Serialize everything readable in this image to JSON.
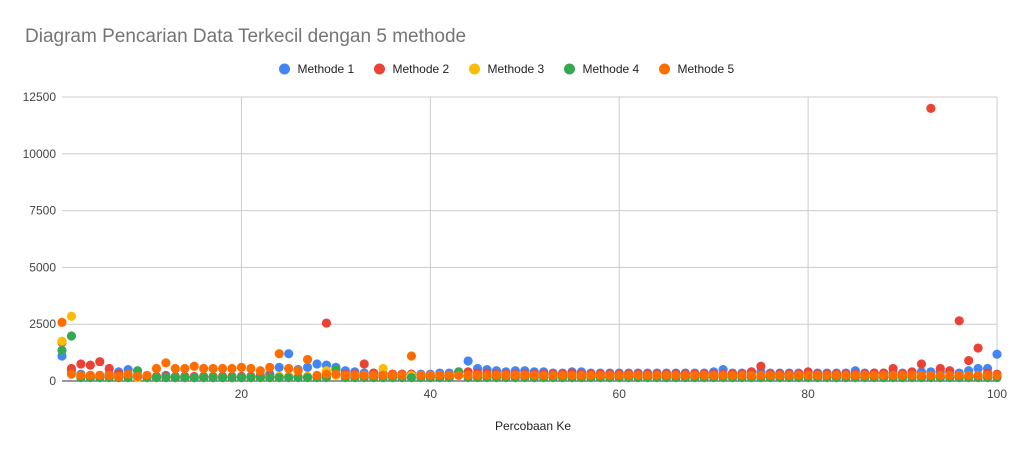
{
  "chart_data": {
    "type": "scatter",
    "title": "Diagram Pencarian Data Terkecil dengan 5 methode",
    "xlabel": "Percobaan Ke",
    "ylabel": "",
    "xlim": [
      1,
      100
    ],
    "ylim": [
      0,
      12500
    ],
    "xticks": [
      20,
      40,
      60,
      80,
      100
    ],
    "yticks": [
      0,
      2500,
      5000,
      7500,
      10000,
      12500
    ],
    "grid": true,
    "legend_position": "top",
    "series": [
      {
        "name": "Methode 1",
        "color": "#4285f4",
        "x": [
          1,
          2,
          3,
          4,
          5,
          6,
          7,
          8,
          9,
          10,
          11,
          12,
          13,
          14,
          15,
          16,
          17,
          18,
          19,
          20,
          21,
          22,
          23,
          24,
          25,
          26,
          27,
          28,
          29,
          30,
          31,
          32,
          33,
          34,
          35,
          36,
          37,
          38,
          39,
          40,
          41,
          42,
          43,
          44,
          45,
          46,
          47,
          48,
          49,
          50,
          51,
          52,
          53,
          54,
          55,
          56,
          57,
          58,
          59,
          60,
          61,
          62,
          63,
          64,
          65,
          66,
          67,
          68,
          69,
          70,
          71,
          72,
          73,
          74,
          75,
          76,
          77,
          78,
          79,
          80,
          81,
          82,
          83,
          84,
          85,
          86,
          87,
          88,
          89,
          90,
          91,
          92,
          93,
          94,
          95,
          96,
          97,
          98,
          99,
          100
        ],
        "y": [
          1100,
          450,
          300,
          250,
          250,
          300,
          400,
          500,
          250,
          200,
          200,
          250,
          150,
          200,
          150,
          200,
          150,
          200,
          150,
          200,
          200,
          250,
          300,
          600,
          1200,
          500,
          600,
          750,
          700,
          600,
          450,
          400,
          350,
          350,
          300,
          300,
          300,
          300,
          300,
          300,
          350,
          350,
          400,
          880,
          550,
          500,
          450,
          400,
          450,
          450,
          400,
          400,
          350,
          350,
          400,
          400,
          350,
          350,
          350,
          350,
          350,
          350,
          350,
          350,
          350,
          350,
          350,
          350,
          350,
          400,
          500,
          350,
          350,
          400,
          400,
          350,
          350,
          350,
          350,
          350,
          350,
          350,
          350,
          350,
          450,
          350,
          350,
          350,
          350,
          350,
          350,
          400,
          400,
          400,
          350,
          350,
          450,
          550,
          550,
          1180
        ]
      },
      {
        "name": "Methode 2",
        "color": "#ea4335",
        "x": [
          1,
          2,
          3,
          4,
          5,
          6,
          7,
          8,
          9,
          10,
          11,
          12,
          13,
          14,
          15,
          16,
          17,
          18,
          19,
          20,
          21,
          22,
          23,
          24,
          25,
          26,
          27,
          28,
          29,
          30,
          31,
          32,
          33,
          34,
          35,
          36,
          37,
          38,
          39,
          40,
          41,
          42,
          43,
          44,
          45,
          46,
          47,
          48,
          49,
          50,
          51,
          52,
          53,
          54,
          55,
          56,
          57,
          58,
          59,
          60,
          61,
          62,
          63,
          64,
          65,
          66,
          67,
          68,
          69,
          70,
          71,
          72,
          73,
          74,
          75,
          76,
          77,
          78,
          79,
          80,
          81,
          82,
          83,
          84,
          85,
          86,
          87,
          88,
          89,
          90,
          91,
          92,
          93,
          94,
          95,
          96,
          97,
          98,
          99,
          100
        ],
        "y": [
          1700,
          550,
          750,
          700,
          850,
          550,
          300,
          200,
          200,
          200,
          200,
          200,
          200,
          200,
          200,
          200,
          200,
          200,
          200,
          200,
          200,
          200,
          200,
          200,
          200,
          200,
          200,
          200,
          2550,
          300,
          300,
          300,
          750,
          350,
          300,
          300,
          300,
          300,
          250,
          250,
          250,
          250,
          250,
          400,
          350,
          350,
          300,
          300,
          300,
          300,
          300,
          300,
          300,
          300,
          350,
          300,
          300,
          300,
          300,
          300,
          300,
          300,
          300,
          300,
          300,
          300,
          300,
          300,
          300,
          300,
          300,
          300,
          300,
          400,
          650,
          300,
          300,
          300,
          300,
          400,
          300,
          300,
          300,
          300,
          300,
          300,
          350,
          350,
          550,
          300,
          400,
          750,
          12000,
          550,
          450,
          2650,
          900,
          1450,
          350,
          300
        ]
      },
      {
        "name": "Methode 3",
        "color": "#fbbc04",
        "x": [
          1,
          2,
          3,
          4,
          5,
          6,
          7,
          8,
          9,
          10,
          11,
          12,
          13,
          14,
          15,
          16,
          17,
          18,
          19,
          20,
          21,
          22,
          23,
          24,
          25,
          26,
          27,
          28,
          29,
          30,
          31,
          32,
          33,
          34,
          35,
          36,
          37,
          38,
          39,
          40,
          41,
          42,
          43,
          44,
          45,
          46,
          47,
          48,
          49,
          50,
          51,
          52,
          53,
          54,
          55,
          56,
          57,
          58,
          59,
          60,
          61,
          62,
          63,
          64,
          65,
          66,
          67,
          68,
          69,
          70,
          71,
          72,
          73,
          74,
          75,
          76,
          77,
          78,
          79,
          80,
          81,
          82,
          83,
          84,
          85,
          86,
          87,
          88,
          89,
          90,
          91,
          92,
          93,
          94,
          95,
          96,
          97,
          98,
          99,
          100
        ],
        "y": [
          1750,
          2850,
          200,
          200,
          200,
          200,
          200,
          200,
          150,
          150,
          150,
          150,
          150,
          150,
          150,
          150,
          150,
          150,
          150,
          150,
          150,
          150,
          150,
          200,
          200,
          200,
          200,
          200,
          450,
          250,
          250,
          250,
          250,
          250,
          550,
          250,
          250,
          250,
          250,
          250,
          250,
          250,
          250,
          250,
          250,
          250,
          250,
          250,
          250,
          250,
          250,
          200,
          200,
          200,
          200,
          200,
          200,
          200,
          200,
          200,
          200,
          200,
          200,
          200,
          200,
          200,
          200,
          200,
          200,
          200,
          200,
          200,
          200,
          200,
          200,
          200,
          200,
          200,
          200,
          200,
          200,
          200,
          200,
          200,
          200,
          200,
          200,
          200,
          200,
          200,
          200,
          200,
          200,
          200,
          200,
          200,
          200,
          200,
          200,
          200
        ]
      },
      {
        "name": "Methode 4",
        "color": "#34a853",
        "x": [
          1,
          2,
          3,
          4,
          5,
          6,
          7,
          8,
          9,
          10,
          11,
          12,
          13,
          14,
          15,
          16,
          17,
          18,
          19,
          20,
          21,
          22,
          23,
          24,
          25,
          26,
          27,
          28,
          29,
          30,
          31,
          32,
          33,
          34,
          35,
          36,
          37,
          38,
          39,
          40,
          41,
          42,
          43,
          44,
          45,
          46,
          47,
          48,
          49,
          50,
          51,
          52,
          53,
          54,
          55,
          56,
          57,
          58,
          59,
          60,
          61,
          62,
          63,
          64,
          65,
          66,
          67,
          68,
          69,
          70,
          71,
          72,
          73,
          74,
          75,
          76,
          77,
          78,
          79,
          80,
          81,
          82,
          83,
          84,
          85,
          86,
          87,
          88,
          89,
          90,
          91,
          92,
          93,
          94,
          95,
          96,
          97,
          98,
          99,
          100
        ],
        "y": [
          1350,
          1980,
          150,
          150,
          150,
          150,
          150,
          150,
          450,
          150,
          150,
          150,
          150,
          150,
          150,
          150,
          150,
          150,
          150,
          150,
          150,
          150,
          150,
          150,
          150,
          150,
          150,
          150,
          150,
          500,
          150,
          150,
          150,
          150,
          150,
          150,
          150,
          150,
          150,
          150,
          150,
          150,
          400,
          150,
          150,
          150,
          150,
          150,
          150,
          150,
          150,
          150,
          150,
          150,
          150,
          150,
          150,
          150,
          150,
          150,
          150,
          150,
          150,
          150,
          150,
          150,
          150,
          150,
          150,
          150,
          150,
          150,
          150,
          150,
          150,
          150,
          150,
          150,
          150,
          150,
          150,
          150,
          150,
          150,
          150,
          150,
          150,
          150,
          150,
          150,
          150,
          150,
          150,
          150,
          150,
          150,
          150,
          150,
          150,
          150
        ]
      },
      {
        "name": "Methode 5",
        "color": "#ff6d01",
        "x": [
          1,
          2,
          3,
          4,
          5,
          6,
          7,
          8,
          9,
          10,
          11,
          12,
          13,
          14,
          15,
          16,
          17,
          18,
          19,
          20,
          21,
          22,
          23,
          24,
          25,
          26,
          27,
          28,
          29,
          30,
          31,
          32,
          33,
          34,
          35,
          36,
          37,
          38,
          39,
          40,
          41,
          42,
          43,
          44,
          45,
          46,
          47,
          48,
          49,
          50,
          51,
          52,
          53,
          54,
          55,
          56,
          57,
          58,
          59,
          60,
          61,
          62,
          63,
          64,
          65,
          66,
          67,
          68,
          69,
          70,
          71,
          72,
          73,
          74,
          75,
          76,
          77,
          78,
          79,
          80,
          81,
          82,
          83,
          84,
          85,
          86,
          87,
          88,
          89,
          90,
          91,
          92,
          93,
          94,
          95,
          96,
          97,
          98,
          99,
          100
        ],
        "y": [
          2580,
          300,
          250,
          250,
          250,
          250,
          200,
          300,
          200,
          250,
          550,
          800,
          550,
          550,
          650,
          550,
          550,
          550,
          550,
          600,
          550,
          450,
          600,
          1200,
          550,
          450,
          950,
          250,
          300,
          300,
          250,
          250,
          250,
          250,
          250,
          250,
          250,
          1100,
          250,
          250,
          250,
          250,
          250,
          250,
          250,
          250,
          250,
          250,
          250,
          250,
          250,
          250,
          250,
          250,
          250,
          250,
          250,
          250,
          250,
          250,
          250,
          250,
          250,
          250,
          250,
          250,
          250,
          250,
          250,
          250,
          250,
          250,
          250,
          250,
          250,
          250,
          250,
          250,
          250,
          250,
          250,
          250,
          250,
          250,
          250,
          250,
          250,
          250,
          250,
          250,
          250,
          250,
          250,
          250,
          250,
          250,
          250,
          250,
          250,
          250
        ]
      }
    ]
  }
}
